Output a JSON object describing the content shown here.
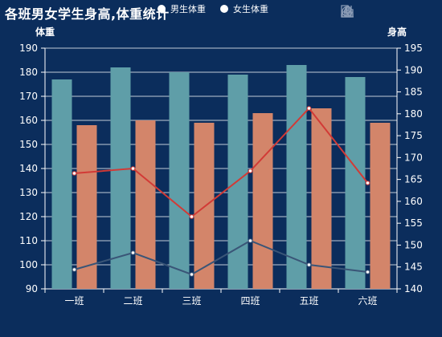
{
  "title": "各班男女学生身高,体重统计",
  "legend": [
    "男生体重",
    "女生体重"
  ],
  "toolbox": [
    "data-view-icon",
    "line-chart-icon",
    "bar-chart-icon",
    "restore-icon",
    "download-icon"
  ],
  "colors": {
    "background": "#0b2d5c",
    "bar_a": "#5f9ea8",
    "bar_b": "#d3856a",
    "line_a": "#d23a36",
    "line_b": "#3a5577",
    "axis": "#ffffff",
    "grid": "#ffffff"
  },
  "chart_data": {
    "type": "bar",
    "categories": [
      "一班",
      "二班",
      "三班",
      "四班",
      "五班",
      "六班"
    ],
    "y_left": {
      "label": "体重",
      "min": 90,
      "max": 190,
      "ticks": [
        90,
        100,
        110,
        120,
        130,
        140,
        150,
        160,
        170,
        180,
        190
      ]
    },
    "y_right": {
      "label": "身高",
      "min": 140,
      "max": 195,
      "ticks": [
        140,
        145,
        150,
        155,
        160,
        165,
        170,
        175,
        180,
        185,
        190,
        195
      ]
    },
    "bars": [
      {
        "axis": "left",
        "values": [
          177,
          182,
          180,
          179,
          183,
          178
        ]
      },
      {
        "axis": "left",
        "values": [
          158,
          160,
          159,
          163,
          165,
          159
        ]
      }
    ],
    "lines": [
      {
        "axis": "left",
        "values": [
          138,
          140,
          120,
          139,
          165,
          134
        ]
      },
      {
        "axis": "left",
        "values": [
          98,
          105,
          96,
          110,
          100,
          97
        ]
      }
    ],
    "grid": true
  }
}
